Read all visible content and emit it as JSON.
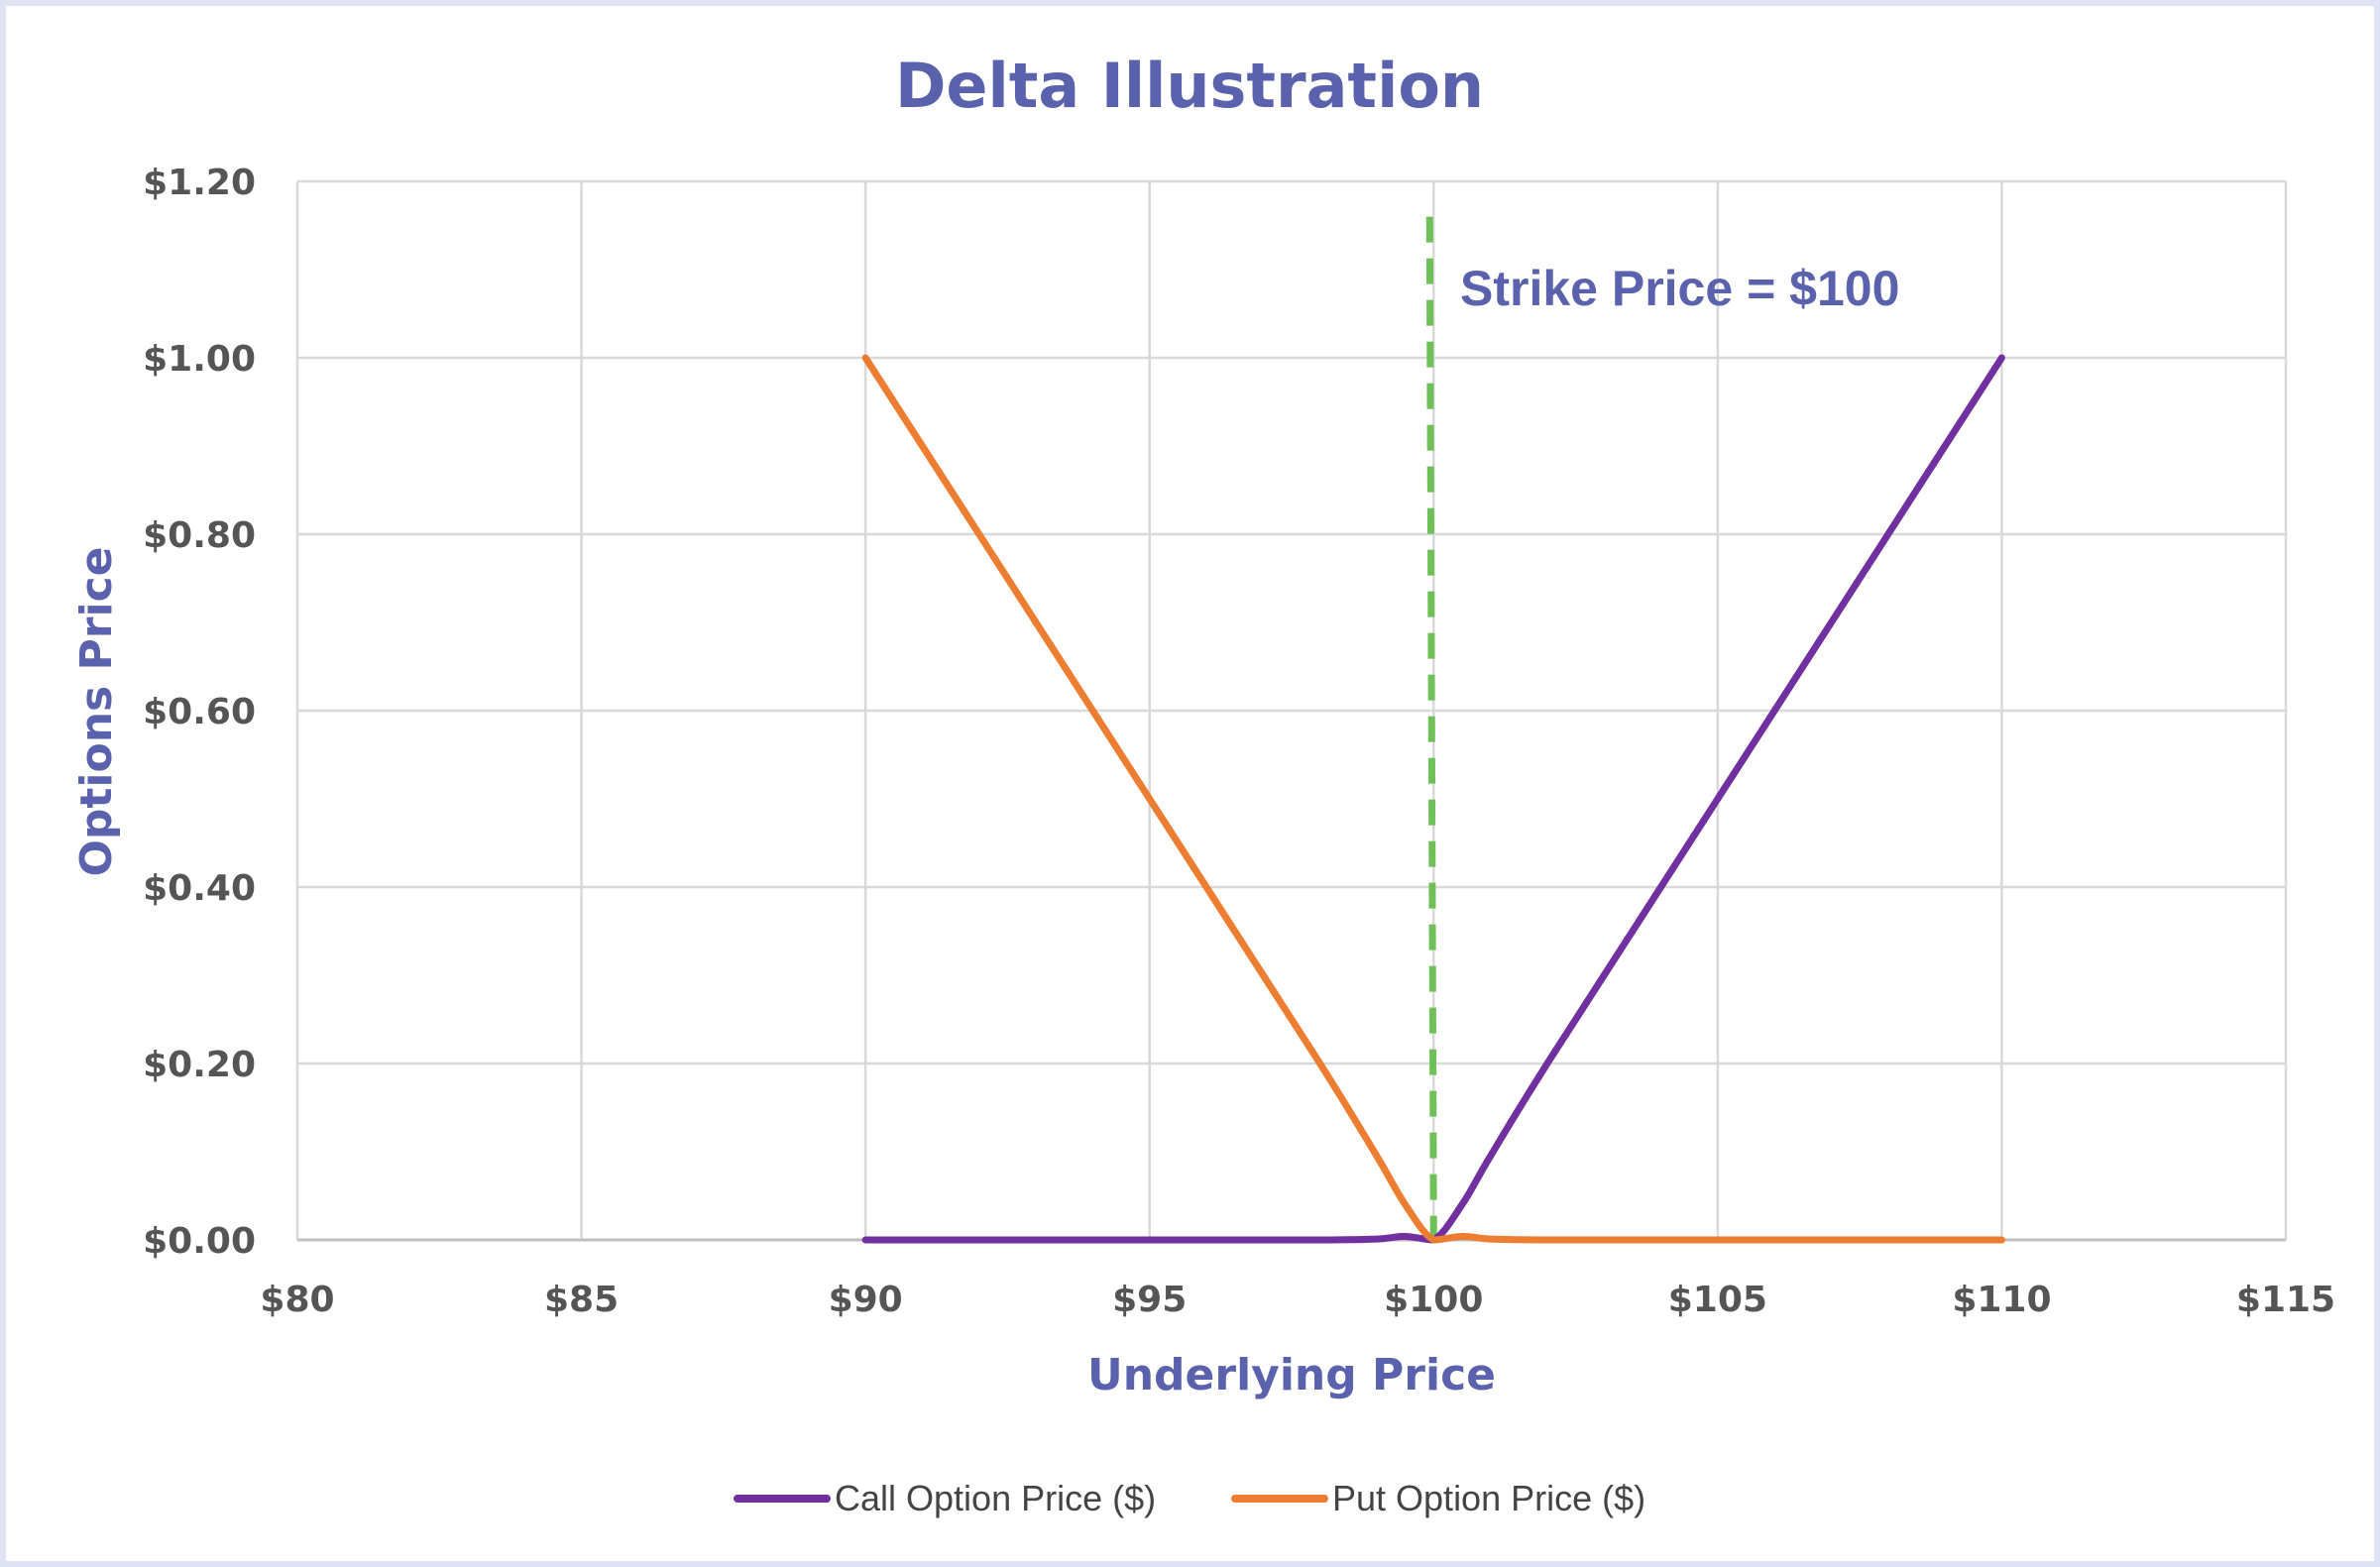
{
  "chart_data": {
    "type": "line",
    "title": "Delta Illustration",
    "xlabel": "Underlying Price",
    "ylabel": "Options Price",
    "xlim": [
      80,
      115
    ],
    "ylim": [
      0,
      1.2
    ],
    "x_ticks": [
      "$80",
      "$85",
      "$90",
      "$95",
      "$100",
      "$105",
      "$110",
      "$115"
    ],
    "y_ticks": [
      "$0.00",
      "$0.20",
      "$0.40",
      "$0.60",
      "$0.80",
      "$1.00",
      "$1.20"
    ],
    "grid": true,
    "legend_position": "bottom",
    "series": [
      {
        "name": "Call Option Price ($)",
        "color": "#7030a0",
        "x": [
          90,
          92,
          94,
          96,
          98,
          99,
          99.5,
          100,
          100.5,
          101,
          102,
          104,
          106,
          108,
          110
        ],
        "y": [
          0,
          0,
          0,
          0,
          0,
          0.001,
          0.004,
          0.0,
          0.04,
          0.095,
          0.2,
          0.4,
          0.6,
          0.8,
          1.0
        ]
      },
      {
        "name": "Put Option Price ($)",
        "color": "#ed7d31",
        "x": [
          90,
          92,
          94,
          96,
          98,
          99,
          99.5,
          100,
          100.5,
          101,
          102,
          104,
          106,
          108,
          110
        ],
        "y": [
          1.0,
          0.8,
          0.6,
          0.4,
          0.2,
          0.095,
          0.04,
          0.0,
          0.004,
          0.001,
          0,
          0,
          0,
          0,
          0
        ]
      }
    ],
    "annotations": [
      {
        "text": "Strike Price = $100",
        "x": 100,
        "line_color": "#70c05a",
        "line_style": "dashed"
      }
    ]
  }
}
